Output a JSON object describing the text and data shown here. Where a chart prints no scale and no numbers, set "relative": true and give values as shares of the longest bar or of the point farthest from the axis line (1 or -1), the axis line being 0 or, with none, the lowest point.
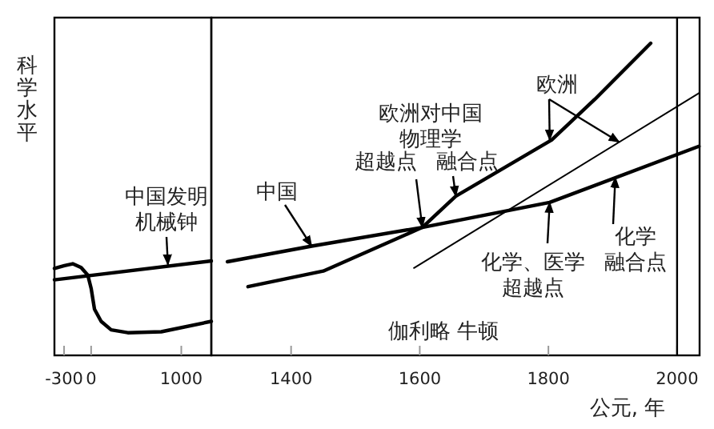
{
  "chart_data": [
    {
      "type": "line",
      "relative": true,
      "ylabel": "科学水平",
      "xlim": [
        -407,
        1333
      ],
      "xticks": [
        -300,
        0,
        1000
      ],
      "series": [
        {
          "color": "#000000",
          "x": [
            -407,
            1333
          ],
          "values": [
            0.8,
            1.0
          ]
        },
        {
          "color": "#000000",
          "x": [
            -407,
            -296,
            -204,
            -111,
            -37,
            0,
            37,
            111,
            222,
            407,
            778,
            1333
          ],
          "values": [
            0.92,
            0.95,
            0.97,
            0.93,
            0.85,
            0.71,
            0.49,
            0.36,
            0.27,
            0.24,
            0.25,
            0.36
          ]
        }
      ],
      "annotations": [
        {
          "text": "中国发明机械钟",
          "x": 852,
          "y": 0.96
        }
      ]
    },
    {
      "type": "line",
      "relative": true,
      "xlabel": "公元, 年",
      "xlim": [
        1276,
        2035
      ],
      "xticks": [
        1400,
        1600,
        1800,
        2000
      ],
      "ref_lines": [
        {
          "axis": "x",
          "value": 2000
        }
      ],
      "series": [
        {
          "color": "#000000",
          "x": [
            1301,
            1432,
            1604,
            1802,
            2034
          ],
          "values": [
            0.3,
            0.35,
            0.41,
            0.49,
            0.67
          ]
        },
        {
          "color": "#000000",
          "x": [
            1333,
            1450,
            1604,
            1656,
            1805,
            1872,
            1959
          ],
          "values": [
            0.22,
            0.27,
            0.41,
            0.51,
            0.69,
            0.82,
            1.0
          ]
        },
        {
          "color": "#000000",
          "x": [
            1591,
            2034
          ],
          "values": [
            0.28,
            0.84
          ]
        }
      ],
      "annotations": [
        {
          "text": "中国",
          "x": 1432,
          "y": 0.35
        },
        "欧洲对中国物理学",
        {
          "text": "超越点",
          "x": 1604,
          "y": 0.41
        },
        {
          "text": "融合点",
          "x": 1656,
          "y": 0.51
        },
        {
          "text": "欧洲",
          "x": 1802,
          "y": 0.69
        },
        {
          "text": "化学、医学超越点",
          "x": 1802,
          "y": 0.49
        },
        {
          "text": "化学融合点",
          "x": 1904,
          "y": 0.57
        },
        "伽利略 牛顿"
      ]
    }
  ]
}
